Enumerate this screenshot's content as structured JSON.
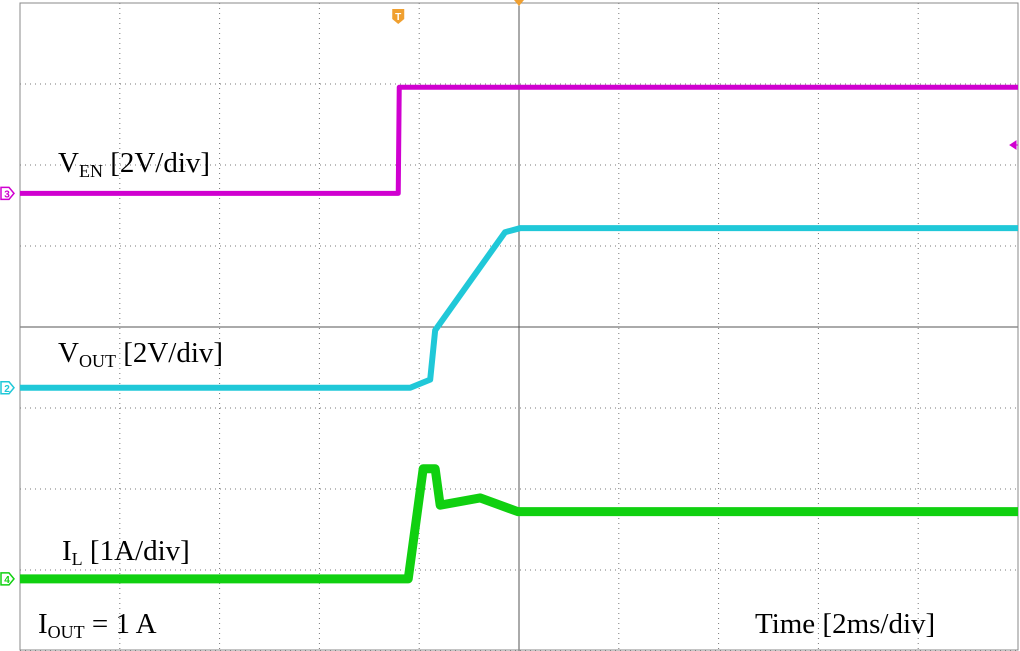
{
  "chart_data": {
    "type": "line",
    "xlim": [
      0,
      10
    ],
    "ylim": [
      0,
      8
    ],
    "xticks": [
      0,
      1,
      2,
      3,
      4,
      5,
      6,
      7,
      8,
      9,
      10
    ],
    "yticks": [
      0,
      1,
      2,
      3,
      4,
      5,
      6,
      7,
      8
    ],
    "grid": true,
    "series": [
      {
        "label": {
          "base": "V",
          "sub": "EN",
          "text": " [2V/div]"
        },
        "marker": "3",
        "color": "#d000d0",
        "x": [
          0,
          3.79,
          3.8,
          10
        ],
        "values": [
          5.65,
          5.65,
          6.96,
          6.96
        ]
      },
      {
        "label": {
          "base": "V",
          "sub": "OUT",
          "text": " [2V/div]"
        },
        "marker": "2",
        "color": "#20c8d8",
        "x": [
          0,
          3.91,
          4.11,
          4.16,
          4.86,
          5.01,
          10
        ],
        "values": [
          3.25,
          3.25,
          3.35,
          3.96,
          5.17,
          5.22,
          5.22
        ]
      },
      {
        "label": {
          "base": "I",
          "sub": "L",
          "text": " [1A/div]"
        },
        "marker": "4",
        "color": "#10d010",
        "x": [
          0,
          3.89,
          4.04,
          4.16,
          4.21,
          4.61,
          4.99,
          10
        ],
        "values": [
          0.89,
          0.89,
          2.25,
          2.25,
          1.8,
          1.89,
          1.72,
          1.72
        ]
      }
    ],
    "annotations": [
      {
        "base": "I",
        "sub": "OUT",
        "text": " = 1 A"
      },
      {
        "text": "Time [2ms/div]"
      }
    ],
    "trigger": "T"
  }
}
